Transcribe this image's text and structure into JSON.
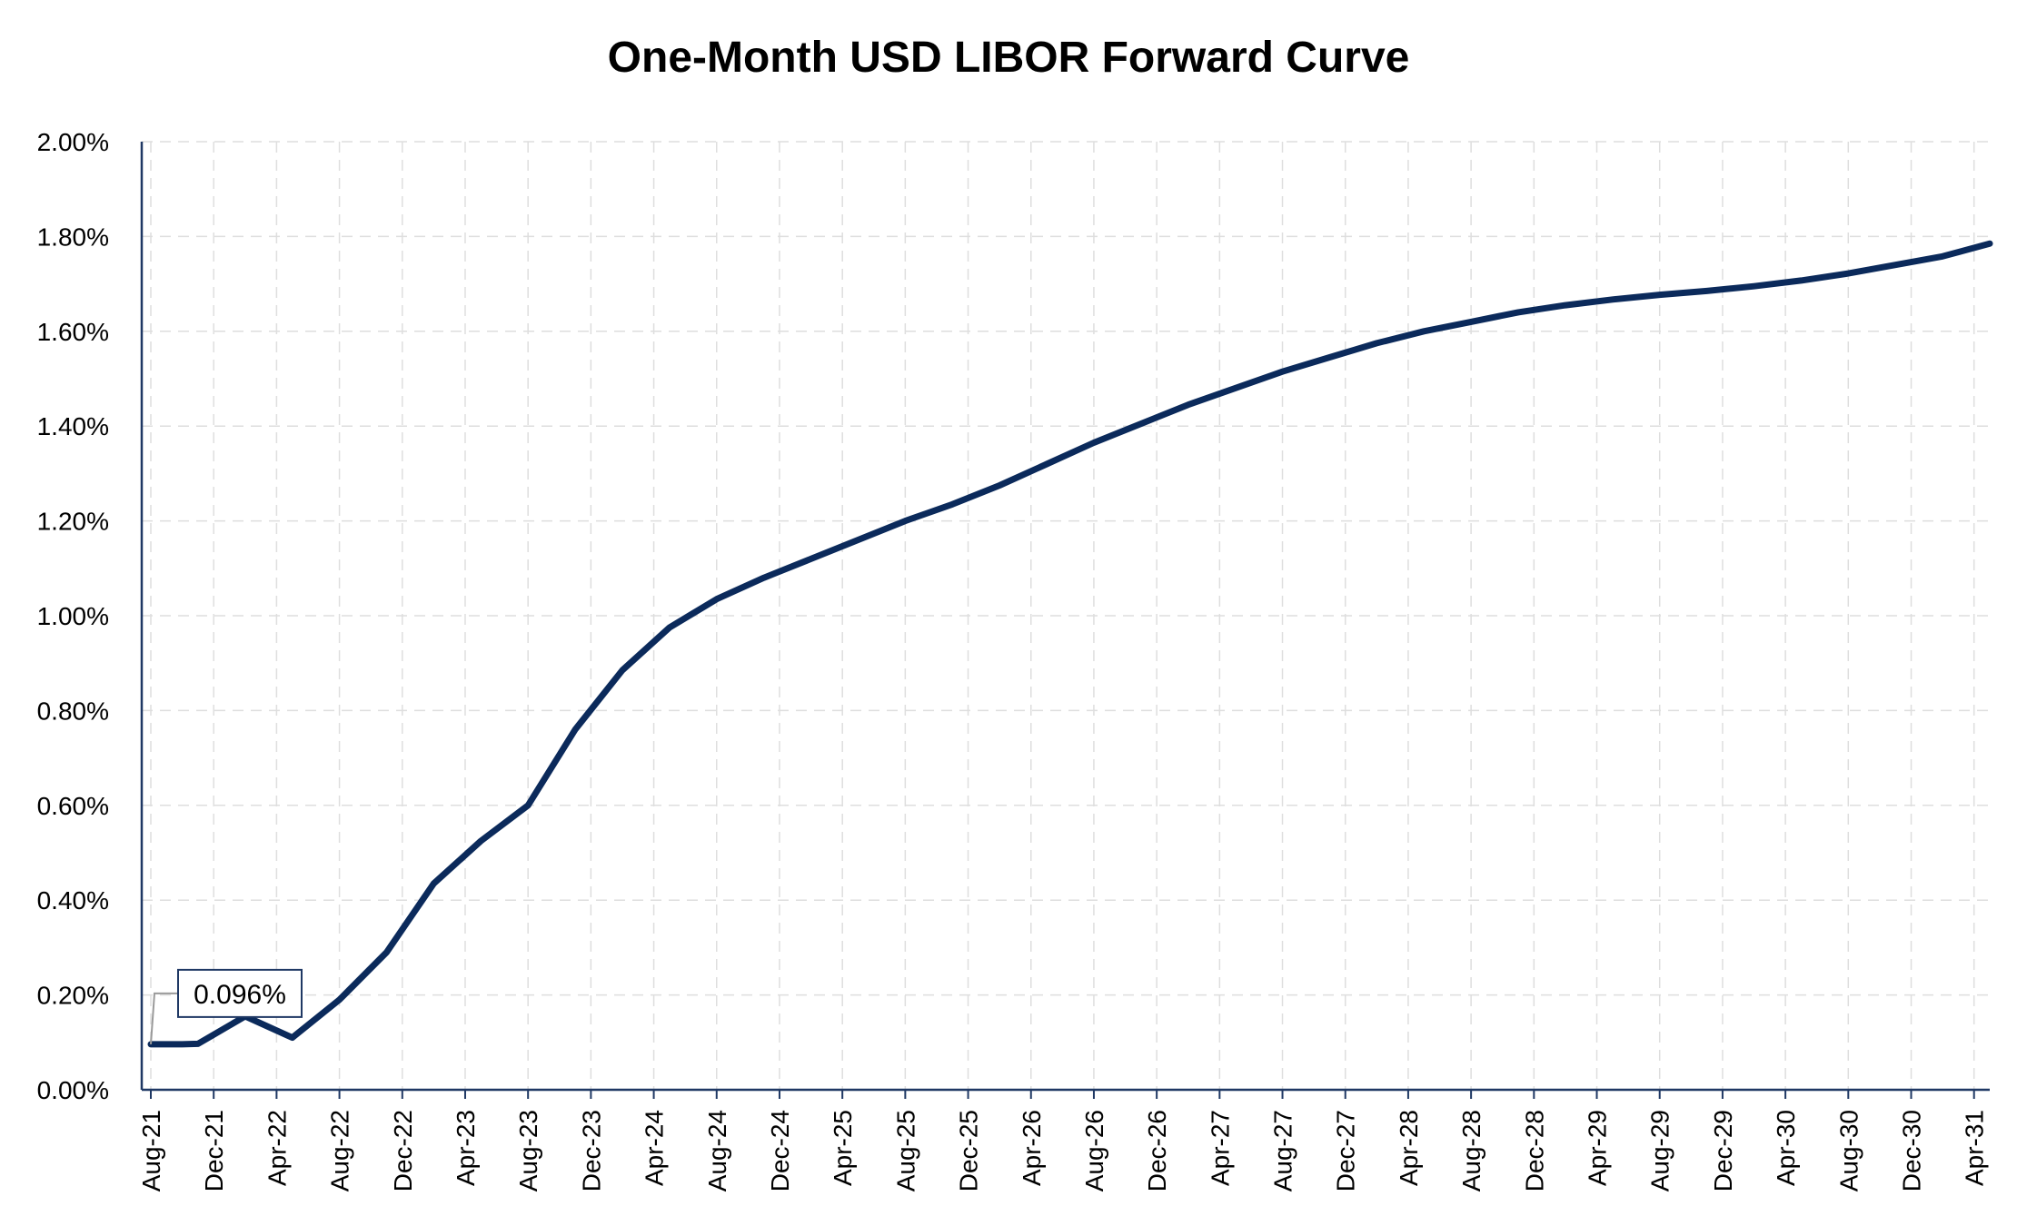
{
  "colors": {
    "series": "#0b2a5b",
    "axis": "#1f3864",
    "grid": "#dedede",
    "callout_border": "#1f3864"
  },
  "chart_data": {
    "type": "line",
    "title": "One-Month USD LIBOR Forward Curve",
    "xlabel": "",
    "ylabel": "",
    "ylim": [
      0,
      2.0
    ],
    "y_ticks": [
      "0.00%",
      "0.20%",
      "0.40%",
      "0.60%",
      "0.80%",
      "1.00%",
      "1.20%",
      "1.40%",
      "1.60%",
      "1.80%",
      "2.00%"
    ],
    "y_tick_values": [
      0,
      0.2,
      0.4,
      0.6,
      0.8,
      1.0,
      1.2,
      1.4,
      1.6,
      1.8,
      2.0
    ],
    "x_ticks": [
      "Aug-21",
      "Dec-21",
      "Apr-22",
      "Aug-22",
      "Dec-22",
      "Apr-23",
      "Aug-23",
      "Dec-23",
      "Apr-24",
      "Aug-24",
      "Dec-24",
      "Apr-25",
      "Aug-25",
      "Dec-25",
      "Apr-26",
      "Aug-26",
      "Dec-26",
      "Apr-27",
      "Aug-27",
      "Dec-27",
      "Apr-28",
      "Aug-28",
      "Dec-28",
      "Apr-29",
      "Aug-29",
      "Dec-29",
      "Apr-30",
      "Aug-30",
      "Dec-30",
      "Apr-31"
    ],
    "grid": true,
    "legend": "none",
    "series": [
      {
        "x": [
          "Aug-21",
          "Oct-21",
          "Nov-21",
          "Feb-22",
          "May-22",
          "Aug-22",
          "Nov-22",
          "Feb-23",
          "May-23",
          "Aug-23",
          "Nov-23",
          "Feb-24",
          "May-24",
          "Aug-24",
          "Nov-24",
          "Feb-25",
          "May-25",
          "Aug-25",
          "Nov-25",
          "Feb-26",
          "May-26",
          "Aug-26",
          "Nov-26",
          "Feb-27",
          "May-27",
          "Aug-27",
          "Nov-27",
          "Feb-28",
          "May-28",
          "Aug-28",
          "Nov-28",
          "Feb-29",
          "May-29",
          "Aug-29",
          "Nov-29",
          "Feb-30",
          "May-30",
          "Aug-30",
          "Nov-30",
          "Feb-31",
          "May-31"
        ],
        "values": [
          0.096,
          0.096,
          0.097,
          0.155,
          0.11,
          0.19,
          0.29,
          0.435,
          0.525,
          0.6,
          0.76,
          0.885,
          0.975,
          1.035,
          1.08,
          1.12,
          1.16,
          1.2,
          1.235,
          1.275,
          1.32,
          1.365,
          1.405,
          1.445,
          1.48,
          1.515,
          1.545,
          1.575,
          1.6,
          1.62,
          1.64,
          1.655,
          1.667,
          1.677,
          1.685,
          1.695,
          1.707,
          1.722,
          1.74,
          1.758,
          1.785
        ]
      }
    ],
    "annotations": [
      {
        "x": "Aug-21",
        "y": 0.096,
        "text": "0.096%"
      }
    ]
  }
}
